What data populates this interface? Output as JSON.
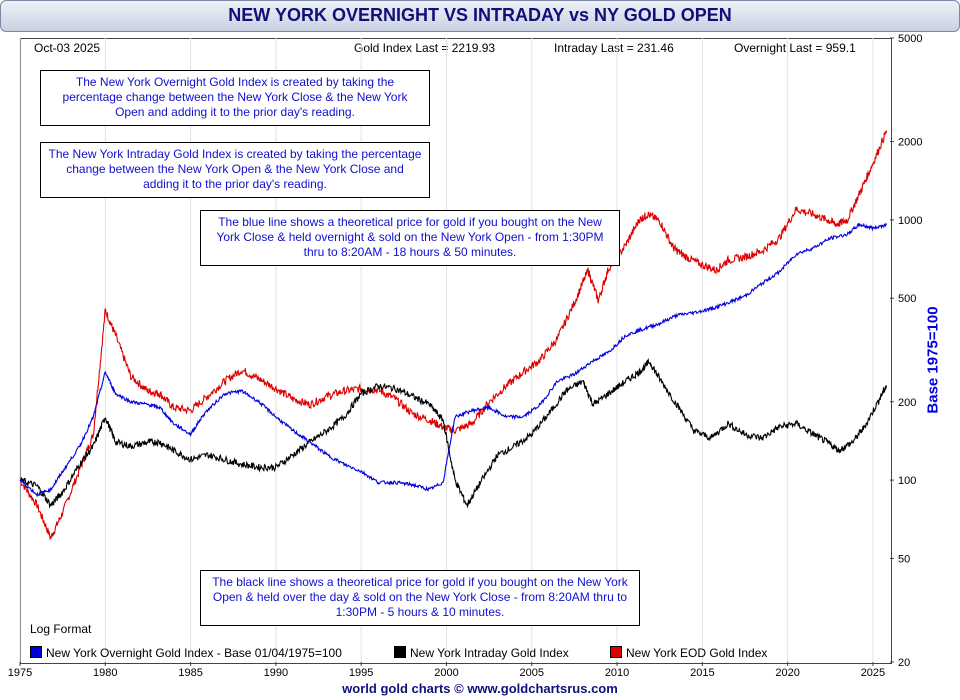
{
  "header": {
    "title": "NEW YORK OVERNIGHT VS INTRADAY vs NY GOLD OPEN",
    "date": "Oct-03  2025",
    "gold_last": "Gold Index Last = 2219.93",
    "intraday_last": "Intraday Last = 231.46",
    "overnight_last": "Overnight Last = 959.1"
  },
  "notes": {
    "overnight": "The New York Overnight Gold Index is created by taking the percentage change between the New York Close & the New York Open and adding it to the prior day's reading.",
    "intraday": "The New York Intraday Gold Index is created by taking the percentage change between the New York Open & the New York Close and adding it to the prior day's reading.",
    "blue_line": "The blue line shows a theoretical price for gold if you bought on the New York Close & held overnight & sold on the New York Open - from 1:30PM thru to 8:20AM - 18 hours & 50 minutes.",
    "black_line": "The black line shows a theoretical price for gold if you bought on the New York Open & held over the day & sold on the New York Close - from 8:20AM thru to 1:30PM - 5 hours & 10 minutes."
  },
  "log_format": "Log Format",
  "footer": "world gold charts © www.goldchartsrus.com",
  "colors": {
    "overnight": "#0000dd",
    "intraday": "#000000",
    "eod": "#dd0000",
    "title": "#10107a"
  },
  "chart_data": {
    "type": "line",
    "title": "NEW YORK OVERNIGHT VS INTRADAY vs NY GOLD OPEN",
    "xlabel": "",
    "ylabel": "Base 1975=100",
    "yscale": "log",
    "xlim": [
      1975,
      2026
    ],
    "ylim": [
      20,
      5000
    ],
    "x_ticks": [
      1975,
      1980,
      1985,
      1990,
      1995,
      2000,
      2005,
      2010,
      2015,
      2020,
      2025
    ],
    "x_tick_labels": [
      "1975",
      "1980",
      "1985",
      "1990",
      "1995",
      "2000",
      "2005",
      "2010",
      "2015",
      "2020",
      "2025"
    ],
    "y_ticks": [
      20,
      50,
      100,
      200,
      500,
      1000,
      2000,
      5000
    ],
    "y_tick_labels": [
      "20",
      "50",
      "100",
      "200",
      "500",
      "1000",
      "2000",
      "5000"
    ],
    "legend": "bottom",
    "series": [
      {
        "name": "New York Overnight Gold Index - Base 01/04/1975=100",
        "color": "#0000dd",
        "x": [
          1975,
          1976,
          1976.8,
          1977.5,
          1978.5,
          1979.3,
          1980,
          1980.6,
          1981.5,
          1982.5,
          1983.2,
          1984,
          1985,
          1985.8,
          1987,
          1988,
          1989,
          1990,
          1991,
          1992,
          1993,
          1994,
          1995,
          1996,
          1997,
          1998,
          1999,
          1999.8,
          2000.5,
          2001.5,
          2002.5,
          2003.5,
          2004.5,
          2005.5,
          2006.5,
          2007.5,
          2008.5,
          2009.5,
          2010.5,
          2011.5,
          2012.5,
          2013.5,
          2014.5,
          2015.5,
          2016.5,
          2017.5,
          2018.5,
          2019.5,
          2020.5,
          2021.5,
          2022.5,
          2023.5,
          2024.2,
          2025,
          2025.8
        ],
        "values": [
          100,
          88,
          92,
          108,
          135,
          175,
          260,
          215,
          200,
          195,
          190,
          165,
          150,
          180,
          215,
          220,
          200,
          175,
          155,
          140,
          125,
          115,
          108,
          98,
          98,
          96,
          92,
          98,
          175,
          185,
          190,
          175,
          175,
          195,
          240,
          255,
          285,
          310,
          360,
          380,
          400,
          430,
          440,
          455,
          480,
          510,
          570,
          630,
          740,
          780,
          850,
          880,
          960,
          930,
          959
        ]
      },
      {
        "name": "New York Intraday Gold Index",
        "color": "#000000",
        "x": [
          1975,
          1976,
          1976.8,
          1977.5,
          1978.5,
          1979.3,
          1980,
          1980.6,
          1981.5,
          1982.5,
          1983.2,
          1984,
          1985,
          1986,
          1987,
          1988,
          1989,
          1990,
          1991,
          1992,
          1993,
          1994,
          1995,
          1996,
          1997,
          1998,
          1999,
          1999.8,
          2000.5,
          2001.2,
          2002,
          2003,
          2004,
          2005,
          2006,
          2007,
          2008,
          2008.6,
          2009.5,
          2010.5,
          2011.3,
          2011.9,
          2012.5,
          2013.5,
          2014.5,
          2015.5,
          2016.5,
          2017.5,
          2018.5,
          2019.5,
          2020.5,
          2021.5,
          2022.3,
          2023,
          2023.8,
          2024.5,
          2025.3,
          2025.8
        ],
        "values": [
          100,
          95,
          80,
          90,
          115,
          135,
          175,
          140,
          135,
          140,
          140,
          130,
          120,
          125,
          120,
          115,
          112,
          112,
          125,
          140,
          155,
          175,
          215,
          230,
          225,
          210,
          195,
          170,
          100,
          80,
          98,
          125,
          135,
          150,
          180,
          220,
          240,
          195,
          215,
          240,
          260,
          285,
          245,
          195,
          155,
          145,
          165,
          150,
          145,
          160,
          165,
          150,
          140,
          130,
          140,
          160,
          200,
          231
        ]
      },
      {
        "name": "New York EOD Gold Index",
        "color": "#dd0000",
        "x": [
          1975,
          1976,
          1976.8,
          1977.5,
          1978.5,
          1979.3,
          1980,
          1980.6,
          1981.5,
          1982.5,
          1983.2,
          1984,
          1985,
          1986,
          1987,
          1988,
          1989,
          1990,
          1991,
          1992,
          1993,
          1994,
          1995,
          1996,
          1997,
          1998,
          1999,
          1999.8,
          2000.5,
          2001.5,
          2002.5,
          2003.5,
          2004.5,
          2005.5,
          2006.5,
          2007.5,
          2008.3,
          2008.9,
          2009.5,
          2010.5,
          2011.3,
          2011.8,
          2012.5,
          2013.3,
          2013.9,
          2014.8,
          2015.8,
          2016.5,
          2017.5,
          2018.5,
          2019.5,
          2020.5,
          2021.5,
          2022.3,
          2022.9,
          2023.5,
          2024.3,
          2025,
          2025.8
        ],
        "values": [
          100,
          80,
          60,
          75,
          110,
          150,
          450,
          360,
          250,
          220,
          215,
          190,
          185,
          210,
          240,
          265,
          245,
          225,
          205,
          195,
          210,
          220,
          225,
          222,
          205,
          180,
          170,
          160,
          155,
          165,
          200,
          230,
          260,
          290,
          350,
          480,
          640,
          490,
          650,
          800,
          1000,
          1050,
          990,
          780,
          730,
          680,
          640,
          700,
          720,
          760,
          850,
          1100,
          1050,
          1000,
          960,
          1000,
          1300,
          1650,
          2200
        ]
      }
    ]
  }
}
